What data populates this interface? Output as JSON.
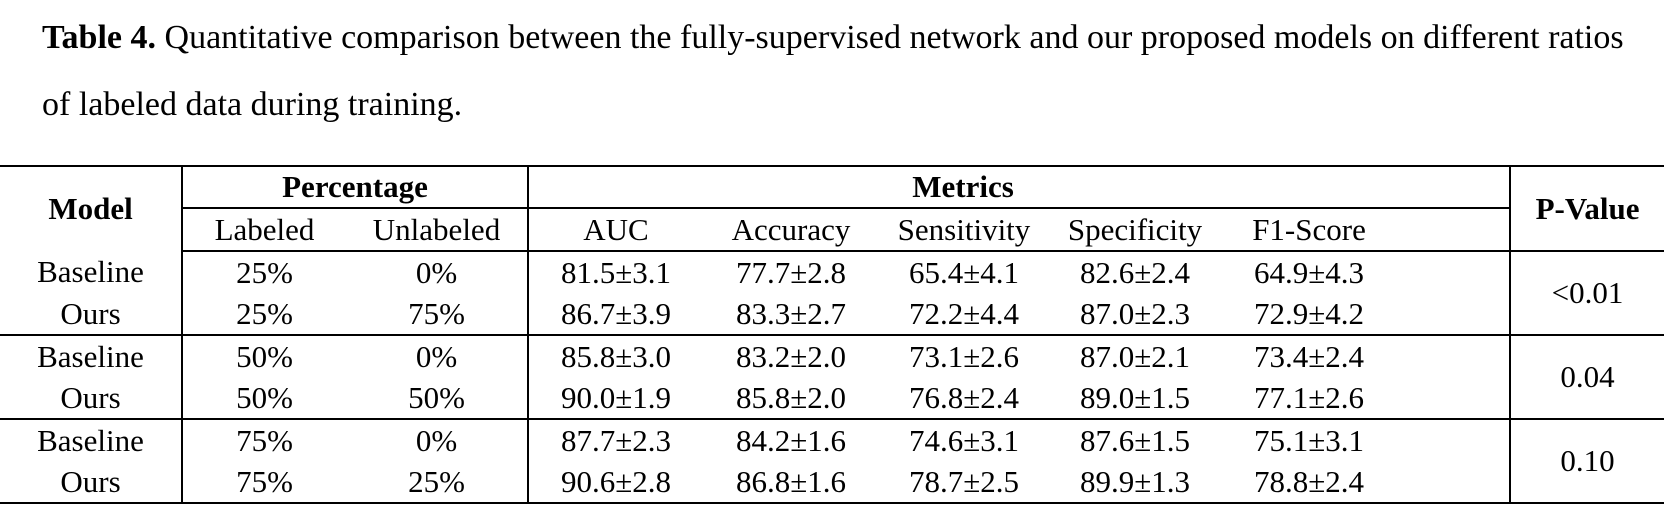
{
  "caption": {
    "label": "Table 4.",
    "text": " Quantitative comparison between the fully-supervised network and our proposed models on different ratios of labeled data during training."
  },
  "table": {
    "headers": {
      "model": "Model",
      "percentage": "Percentage",
      "labeled": "Labeled",
      "unlabeled": "Unlabeled",
      "metrics": "Metrics",
      "auc": "AUC",
      "accuracy": "Accuracy",
      "sensitivity": "Sensitivity",
      "specificity": "Specificity",
      "f1": "F1-Score",
      "pvalue": "P-Value"
    },
    "groups": [
      {
        "p_value": "<0.01",
        "rows": [
          {
            "model": "Baseline",
            "labeled": "25%",
            "unlabeled": "0%",
            "auc": "81.5±3.1",
            "accuracy": "77.7±2.8",
            "sensitivity": "65.4±4.1",
            "specificity": "82.6±2.4",
            "f1": "64.9±4.3"
          },
          {
            "model": "Ours",
            "labeled": "25%",
            "unlabeled": "75%",
            "auc": "86.7±3.9",
            "accuracy": "83.3±2.7",
            "sensitivity": "72.2±4.4",
            "specificity": "87.0±2.3",
            "f1": "72.9±4.2"
          }
        ]
      },
      {
        "p_value": "0.04",
        "rows": [
          {
            "model": "Baseline",
            "labeled": "50%",
            "unlabeled": "0%",
            "auc": "85.8±3.0",
            "accuracy": "83.2±2.0",
            "sensitivity": "73.1±2.6",
            "specificity": "87.0±2.1",
            "f1": "73.4±2.4"
          },
          {
            "model": "Ours",
            "labeled": "50%",
            "unlabeled": "50%",
            "auc": "90.0±1.9",
            "accuracy": "85.8±2.0",
            "sensitivity": "76.8±2.4",
            "specificity": "89.0±1.5",
            "f1": "77.1±2.6"
          }
        ]
      },
      {
        "p_value": "0.10",
        "rows": [
          {
            "model": "Baseline",
            "labeled": "75%",
            "unlabeled": "0%",
            "auc": "87.7±2.3",
            "accuracy": "84.2±1.6",
            "sensitivity": "74.6±3.1",
            "specificity": "87.6±1.5",
            "f1": "75.1±3.1"
          },
          {
            "model": "Ours",
            "labeled": "75%",
            "unlabeled": "25%",
            "auc": "90.6±2.8",
            "accuracy": "86.8±1.6",
            "sensitivity": "78.7±2.5",
            "specificity": "89.9±1.3",
            "f1": "78.8±2.4"
          }
        ]
      }
    ]
  }
}
